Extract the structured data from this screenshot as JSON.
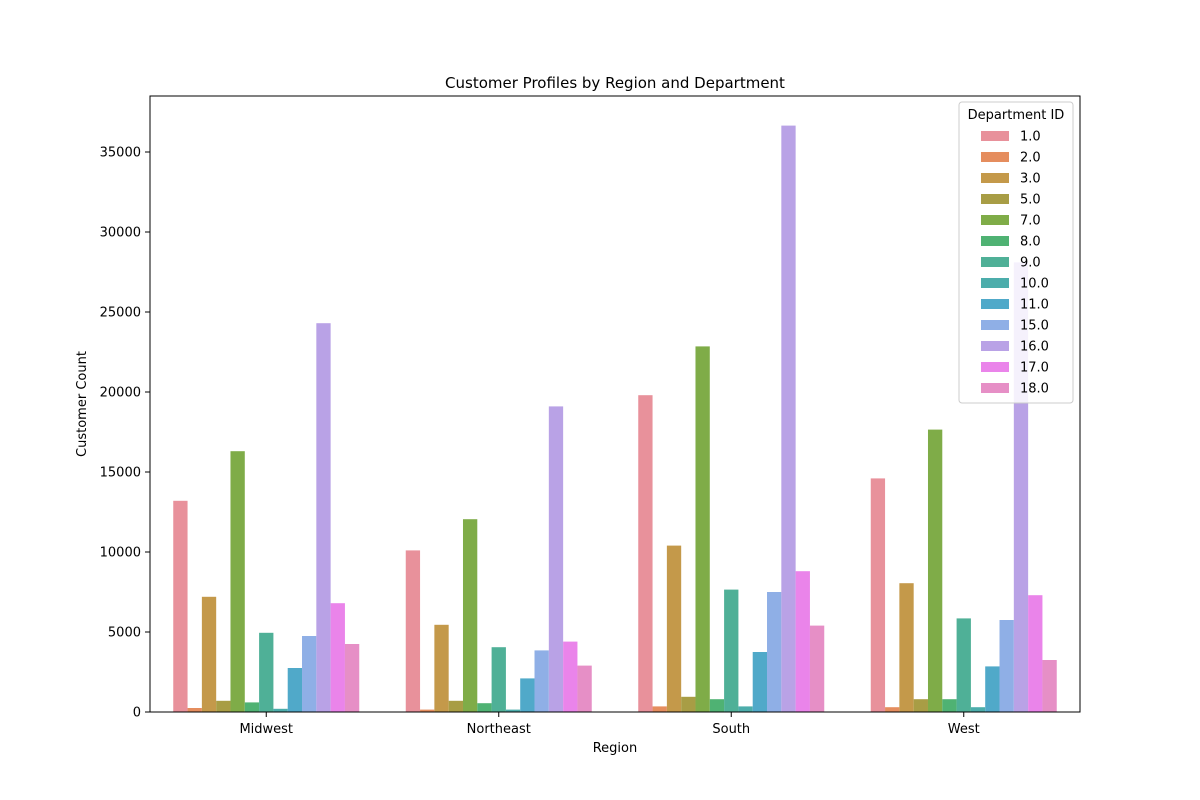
{
  "chart_data": {
    "type": "bar",
    "title": "Customer Profiles by Region and Department",
    "xlabel": "Region",
    "ylabel": "Customer Count",
    "categories": [
      "Midwest",
      "Northeast",
      "South",
      "West"
    ],
    "ylim": [
      0,
      38500
    ],
    "yticks": [
      0,
      5000,
      10000,
      15000,
      20000,
      25000,
      30000,
      35000
    ],
    "legend": {
      "title": "Department ID",
      "position": "top-right"
    },
    "series": [
      {
        "name": "1.0",
        "color": "#e8919b",
        "values": [
          13200,
          10100,
          19800,
          14600
        ]
      },
      {
        "name": "2.0",
        "color": "#e58d5e",
        "values": [
          250,
          150,
          350,
          300
        ]
      },
      {
        "name": "3.0",
        "color": "#c4994a",
        "values": [
          7200,
          5450,
          10400,
          8050
        ]
      },
      {
        "name": "5.0",
        "color": "#a89d45",
        "values": [
          700,
          700,
          950,
          800
        ]
      },
      {
        "name": "7.0",
        "color": "#7fac48",
        "values": [
          16300,
          12050,
          22850,
          17650
        ]
      },
      {
        "name": "8.0",
        "color": "#4fb273",
        "values": [
          600,
          550,
          800,
          800
        ]
      },
      {
        "name": "9.0",
        "color": "#4fb097",
        "values": [
          4950,
          4050,
          7650,
          5850
        ]
      },
      {
        "name": "10.0",
        "color": "#4cadab",
        "values": [
          200,
          150,
          350,
          300
        ]
      },
      {
        "name": "11.0",
        "color": "#50a9c9",
        "values": [
          2750,
          2100,
          3750,
          2850
        ]
      },
      {
        "name": "15.0",
        "color": "#8fafe6",
        "values": [
          4750,
          3850,
          7500,
          5750
        ]
      },
      {
        "name": "16.0",
        "color": "#b9a2e6",
        "values": [
          24300,
          19100,
          36650,
          28100
        ]
      },
      {
        "name": "17.0",
        "color": "#ea84ea",
        "values": [
          6800,
          4400,
          8800,
          7300
        ]
      },
      {
        "name": "18.0",
        "color": "#e68fc6",
        "values": [
          4250,
          2900,
          5400,
          3250
        ]
      }
    ]
  }
}
